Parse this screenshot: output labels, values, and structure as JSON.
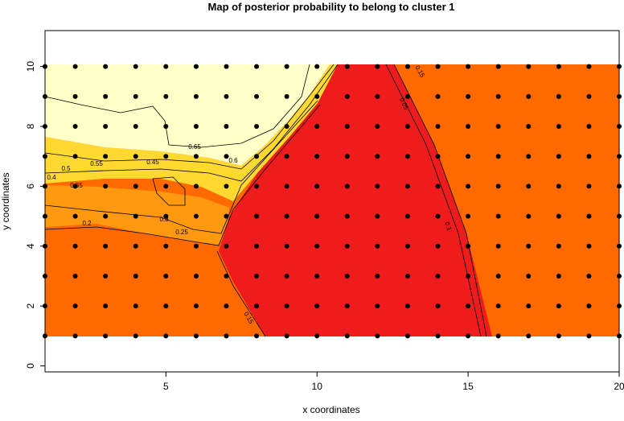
{
  "chart_data": {
    "type": "contour-map",
    "title": "Map of posterior probability to belong to cluster  1",
    "x_label": "x coordinates",
    "y_label": "y coordinates",
    "xlim": [
      1,
      20
    ],
    "ylim": [
      -0.2,
      11.2
    ],
    "xticks": [
      5,
      10,
      15,
      20
    ],
    "yticks": [
      0,
      2,
      4,
      6,
      8,
      10
    ],
    "points": {
      "x": [
        1,
        2,
        3,
        4,
        5,
        6,
        7,
        8,
        9,
        10,
        11,
        12,
        13,
        14,
        15,
        16,
        17,
        18,
        19,
        20
      ],
      "y": [
        1,
        2,
        3,
        4,
        5,
        6,
        7,
        8,
        9,
        10
      ]
    },
    "contour_labels": [
      0.65,
      0.6,
      0.55,
      0.5,
      0.45,
      0.4,
      0.35,
      0.3,
      0.25,
      0.2,
      0.15,
      0.15,
      0.1,
      0.05
    ]
  }
}
